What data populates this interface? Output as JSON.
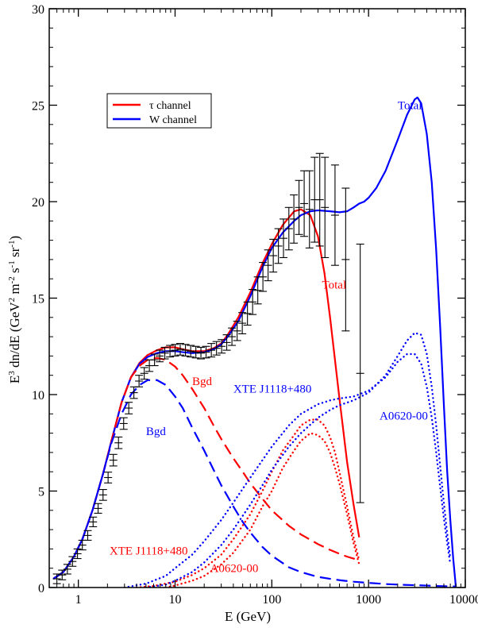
{
  "chart_data": {
    "type": "line",
    "xscale": "log",
    "xlim": [
      0.5,
      10000
    ],
    "ylim": [
      0,
      30
    ],
    "grid": false,
    "xlabel": "E (GeV)",
    "ylabel": "E3 dn/dE (GeV2 m-2 s-1 sr-1)",
    "xticks": [
      "1",
      "10",
      "100",
      "1000",
      "10000"
    ],
    "yticks": [
      "0",
      "5",
      "10",
      "15",
      "20",
      "25",
      "30"
    ],
    "legend": {
      "position": "top-left",
      "entries": [
        {
          "label": "τ channel",
          "color": "#ff0000"
        },
        {
          "label": "W channel",
          "color": "#0000ff"
        }
      ]
    },
    "annotations": [
      {
        "text": "Total",
        "color": "#0000ff",
        "x": 2000,
        "y": 24.8
      },
      {
        "text": "Total",
        "color": "#ff0000",
        "x": 330,
        "y": 15.5
      },
      {
        "text": "Bgd",
        "color": "#ff0000",
        "x": 15,
        "y": 10.5
      },
      {
        "text": "Bgd",
        "color": "#0000ff",
        "x": 5,
        "y": 7.9
      },
      {
        "text": "XTE J1118+480",
        "color": "#0000ff",
        "x": 40,
        "y": 10.1
      },
      {
        "text": "A0620-00",
        "color": "#0000ff",
        "x": 1300,
        "y": 8.7
      },
      {
        "text": "XTE J1118+480",
        "color": "#ff0000",
        "x": 2.1,
        "y": 1.7
      },
      {
        "text": "A0620-00",
        "color": "#ff0000",
        "x": 23,
        "y": 0.8
      }
    ],
    "series": [
      {
        "name": "τ channel",
        "style": "solid",
        "color": "#ff0000",
        "width": 2.2,
        "x": [
          0.55,
          0.7,
          0.9,
          1.1,
          1.4,
          1.8,
          2.2,
          2.8,
          3.5,
          4.3,
          5.2,
          6.5,
          8,
          10,
          12,
          15,
          20,
          25,
          30,
          35,
          45,
          60,
          80,
          100,
          130,
          170,
          200,
          250,
          300,
          350,
          400,
          500,
          600,
          700,
          800
        ],
        "y": [
          0.45,
          0.8,
          1.6,
          2.5,
          4.0,
          5.9,
          7.6,
          9.6,
          10.9,
          11.65,
          12.05,
          12.3,
          12.45,
          12.45,
          12.35,
          12.25,
          12.25,
          12.4,
          12.65,
          13.1,
          14.0,
          15.3,
          16.8,
          17.8,
          18.8,
          19.5,
          19.6,
          19.3,
          18.2,
          16.3,
          14.0,
          9.8,
          6.5,
          4.3,
          2.6
        ]
      },
      {
        "name": "W channel",
        "style": "solid",
        "color": "#0000ff",
        "width": 2.2,
        "x": [
          0.55,
          0.7,
          0.9,
          1.1,
          1.4,
          1.8,
          2.2,
          2.8,
          3.5,
          4.3,
          5.2,
          6.5,
          8,
          10,
          12,
          15,
          20,
          25,
          30,
          35,
          45,
          60,
          80,
          100,
          130,
          170,
          200,
          250,
          300,
          400,
          500,
          600,
          700,
          800,
          900,
          1000,
          1200,
          1500,
          2000,
          2500,
          3000,
          3200,
          3500,
          4000,
          4500,
          5000,
          5500,
          6000,
          6500,
          7000,
          7500,
          8000
        ],
        "y": [
          0.45,
          0.8,
          1.6,
          2.5,
          4.0,
          5.9,
          7.6,
          9.6,
          10.9,
          11.6,
          11.95,
          12.15,
          12.25,
          12.25,
          12.2,
          12.15,
          12.2,
          12.35,
          12.6,
          13.0,
          13.8,
          15.1,
          16.6,
          17.6,
          18.4,
          19.0,
          19.3,
          19.5,
          19.55,
          19.5,
          19.45,
          19.5,
          19.7,
          19.9,
          20.0,
          20.2,
          20.7,
          21.6,
          23.2,
          24.5,
          25.3,
          25.4,
          25.1,
          23.5,
          21.0,
          17.5,
          13.5,
          9.5,
          6.0,
          3.5,
          1.5,
          0.0
        ]
      },
      {
        "name": "Bgd (τ)",
        "style": "dashed",
        "color": "#ff0000",
        "width": 2.2,
        "x": [
          0.55,
          0.7,
          0.9,
          1.1,
          1.4,
          1.8,
          2.2,
          2.8,
          3.5,
          4.3,
          5.2,
          6.5,
          8,
          10,
          12,
          15,
          20,
          25,
          30,
          40,
          50,
          60,
          80,
          100,
          150,
          200,
          300,
          400,
          500,
          600,
          700,
          800
        ],
        "y": [
          0.45,
          0.8,
          1.6,
          2.5,
          4.0,
          5.9,
          7.6,
          9.6,
          10.9,
          11.5,
          11.8,
          11.9,
          11.8,
          11.45,
          11.0,
          10.3,
          9.3,
          8.4,
          7.7,
          6.7,
          6.0,
          5.4,
          4.6,
          4.0,
          3.2,
          2.75,
          2.25,
          1.95,
          1.75,
          1.6,
          1.5,
          1.4
        ]
      },
      {
        "name": "Bgd (W)",
        "style": "dashed",
        "color": "#0000ff",
        "width": 2.2,
        "x": [
          0.55,
          0.7,
          0.9,
          1.1,
          1.4,
          1.8,
          2.2,
          2.8,
          3.5,
          4.3,
          5.2,
          6.5,
          8,
          10,
          12,
          15,
          20,
          25,
          30,
          40,
          50,
          60,
          80,
          100,
          150,
          200,
          300,
          400,
          500,
          700,
          1000,
          1500,
          2000,
          3000,
          4000,
          5000,
          6000,
          7000,
          8000
        ],
        "y": [
          0.45,
          0.8,
          1.6,
          2.5,
          4.0,
          5.9,
          7.5,
          9.0,
          10.0,
          10.5,
          10.75,
          10.75,
          10.5,
          9.9,
          9.3,
          8.3,
          7.1,
          6.1,
          5.3,
          4.2,
          3.4,
          2.85,
          2.1,
          1.65,
          1.05,
          0.8,
          0.55,
          0.45,
          0.38,
          0.3,
          0.24,
          0.18,
          0.15,
          0.12,
          0.1,
          0.08,
          0.07,
          0.06,
          0.05
        ]
      },
      {
        "name": "XTE J1118+480 (τ)",
        "style": "dotted",
        "color": "#ff0000",
        "width": 2.4,
        "x": [
          4,
          6,
          10,
          15,
          20,
          30,
          40,
          60,
          80,
          100,
          130,
          170,
          200,
          250,
          300,
          350,
          400,
          450,
          500,
          600,
          700,
          800
        ],
        "y": [
          0.0,
          0.08,
          0.3,
          0.65,
          1.0,
          1.7,
          2.5,
          3.8,
          5.0,
          6.0,
          7.1,
          7.9,
          8.4,
          8.7,
          8.7,
          8.4,
          7.8,
          7.0,
          6.0,
          4.2,
          2.6,
          1.4
        ]
      },
      {
        "name": "A0620-00 (τ)",
        "style": "dotted",
        "color": "#ff0000",
        "width": 2.4,
        "x": [
          8,
          10,
          15,
          20,
          30,
          40,
          60,
          80,
          100,
          130,
          170,
          200,
          250,
          300,
          350,
          400,
          450,
          500,
          600,
          700,
          800
        ],
        "y": [
          0.0,
          0.1,
          0.35,
          0.6,
          1.2,
          1.8,
          3.0,
          4.2,
          5.0,
          6.2,
          7.1,
          7.6,
          8.0,
          7.9,
          7.6,
          7.0,
          6.2,
          5.4,
          3.8,
          2.3,
          1.2
        ]
      },
      {
        "name": "XTE J1118+480 (W)",
        "style": "dotted",
        "color": "#0000ff",
        "width": 2.4,
        "x": [
          3,
          5,
          8,
          10,
          15,
          20,
          30,
          40,
          60,
          80,
          100,
          150,
          200,
          300,
          400,
          500,
          700,
          1000,
          1500,
          2000,
          2500,
          3000,
          3500,
          4000,
          4500,
          5000,
          5500,
          6000,
          6500,
          7000
        ],
        "y": [
          0.0,
          0.2,
          0.6,
          1.0,
          1.7,
          2.4,
          3.5,
          4.4,
          5.7,
          6.6,
          7.3,
          8.4,
          9.0,
          9.5,
          9.7,
          9.8,
          9.9,
          10.2,
          10.9,
          11.7,
          12.1,
          12.1,
          11.6,
          10.4,
          8.8,
          7.0,
          5.2,
          3.6,
          2.3,
          1.2
        ]
      },
      {
        "name": "A0620-00 (W)",
        "style": "dotted",
        "color": "#0000ff",
        "width": 2.4,
        "x": [
          5,
          8,
          10,
          15,
          20,
          30,
          40,
          60,
          80,
          100,
          150,
          200,
          300,
          400,
          500,
          700,
          1000,
          1500,
          2000,
          2500,
          3000,
          3500,
          4000,
          4500,
          5000,
          5500,
          6000,
          6500,
          7000
        ],
        "y": [
          0.0,
          0.15,
          0.35,
          0.8,
          1.3,
          2.2,
          3.0,
          4.3,
          5.3,
          6.1,
          7.3,
          8.0,
          8.8,
          9.2,
          9.45,
          9.7,
          10.1,
          11.0,
          12.0,
          12.8,
          13.2,
          13.1,
          12.1,
          10.4,
          8.4,
          6.3,
          4.4,
          2.8,
          1.5
        ]
      }
    ],
    "data_points": {
      "name": "data",
      "color": "#000000",
      "x": [
        0.6,
        0.68,
        0.77,
        0.87,
        0.98,
        1.1,
        1.25,
        1.42,
        1.6,
        1.8,
        2.03,
        2.3,
        2.6,
        2.94,
        3.32,
        3.75,
        4.24,
        4.8,
        5.42,
        6.13,
        6.93,
        7.83,
        8.86,
        10.0,
        11.3,
        12.8,
        14.5,
        16.4,
        18.5,
        20.9,
        23.7,
        26.8,
        30.3,
        34.2,
        38.7,
        43.8,
        49.5,
        56.0,
        63.3,
        71.6,
        80.9,
        91.5,
        103.5,
        117,
        132,
        150,
        169,
        191,
        216,
        245,
        277,
        313,
        354,
        450,
        580,
        820
      ],
      "y": [
        0.45,
        0.65,
        0.95,
        1.35,
        1.75,
        2.2,
        2.7,
        3.4,
        4.1,
        4.8,
        5.7,
        6.6,
        7.5,
        8.5,
        9.3,
        10.1,
        10.7,
        11.1,
        11.5,
        11.8,
        12.0,
        12.15,
        12.25,
        12.3,
        12.35,
        12.3,
        12.25,
        12.2,
        12.15,
        12.2,
        12.3,
        12.4,
        12.5,
        12.7,
        13.0,
        13.3,
        13.7,
        14.2,
        14.8,
        15.4,
        16.1,
        16.7,
        17.2,
        17.7,
        18.1,
        18.6,
        19.1,
        19.7,
        19.9,
        19.6,
        20.1,
        20.1,
        19.7,
        19.3,
        17.0,
        11.1
      ],
      "err": [
        0.25,
        0.25,
        0.25,
        0.25,
        0.25,
        0.25,
        0.25,
        0.25,
        0.25,
        0.28,
        0.28,
        0.3,
        0.3,
        0.3,
        0.3,
        0.3,
        0.3,
        0.3,
        0.3,
        0.3,
        0.3,
        0.3,
        0.3,
        0.3,
        0.3,
        0.3,
        0.3,
        0.3,
        0.3,
        0.3,
        0.35,
        0.35,
        0.35,
        0.4,
        0.45,
        0.5,
        0.55,
        0.6,
        0.65,
        0.7,
        0.75,
        0.8,
        0.85,
        0.9,
        1.0,
        1.1,
        1.25,
        1.4,
        1.7,
        2.0,
        2.2,
        2.4,
        2.6,
        2.6,
        3.7,
        6.7
      ]
    }
  }
}
